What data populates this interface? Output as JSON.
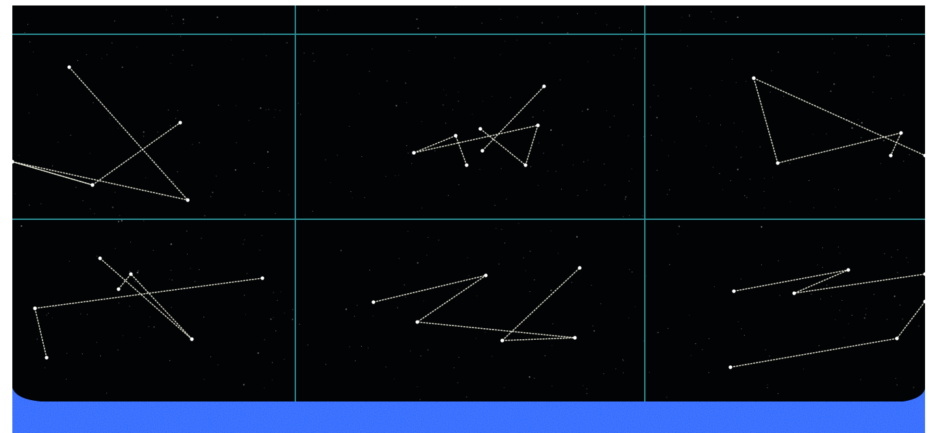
{
  "scene": {
    "background_color": "#020304",
    "page_margin_color": "#ffffff",
    "grid_line_color": "#2a8f96",
    "constellation_line_color": "#e6e8d8",
    "star_node_color": "#ffffff",
    "dust_color": "#9aa7a5",
    "water_color": "#1f5cff",
    "water_highlight_color": "#6f95ff",
    "grid_columns": 3,
    "grid_rows": 2,
    "constellation_count": 6
  }
}
